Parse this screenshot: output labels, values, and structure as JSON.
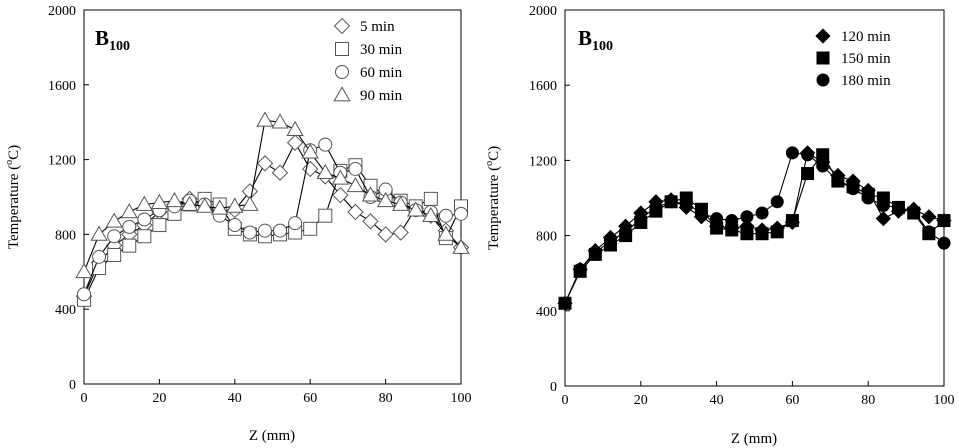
{
  "chart_data": [
    {
      "type": "line",
      "panel_label": "B",
      "panel_label_sub": "100",
      "xlabel": "Z (mm)",
      "ylabel_main": "Temperature (",
      "ylabel_sup": "o",
      "ylabel_end": "C)",
      "xlim": [
        0,
        100
      ],
      "ylim": [
        0,
        2000
      ],
      "xticks": [
        0,
        20,
        40,
        60,
        80,
        100
      ],
      "yticks": [
        0,
        400,
        800,
        1200,
        1600,
        2000
      ],
      "grid": false,
      "legend_position": "top-right",
      "marker_style": "hollow",
      "series": [
        {
          "name": "5 min",
          "marker": "diamond",
          "x": [
            0,
            4,
            8,
            12,
            16,
            20,
            24,
            28,
            32,
            36,
            40,
            44,
            48,
            52,
            56,
            60,
            64,
            68,
            72,
            76,
            80,
            84,
            88,
            92,
            96,
            100
          ],
          "y": [
            470,
            650,
            740,
            800,
            850,
            920,
            960,
            990,
            960,
            920,
            930,
            1030,
            1180,
            1130,
            1290,
            1150,
            1110,
            1010,
            920,
            870,
            800,
            810,
            940,
            900,
            820,
            730
          ]
        },
        {
          "name": "30 min",
          "marker": "square",
          "x": [
            0,
            4,
            8,
            12,
            16,
            20,
            24,
            28,
            32,
            36,
            40,
            44,
            48,
            52,
            56,
            60,
            64,
            68,
            72,
            76,
            80,
            84,
            88,
            92,
            96,
            100
          ],
          "y": [
            450,
            620,
            690,
            740,
            790,
            850,
            910,
            960,
            990,
            960,
            830,
            800,
            790,
            800,
            810,
            830,
            900,
            1140,
            1170,
            1060,
            1010,
            980,
            950,
            990,
            780,
            950
          ]
        },
        {
          "name": "60 min",
          "marker": "circle",
          "x": [
            0,
            4,
            8,
            12,
            16,
            20,
            24,
            28,
            32,
            36,
            40,
            44,
            48,
            52,
            56,
            60,
            64,
            68,
            72,
            76,
            80,
            84,
            88,
            92,
            96,
            100
          ],
          "y": [
            480,
            680,
            790,
            840,
            880,
            930,
            950,
            980,
            960,
            900,
            850,
            810,
            820,
            820,
            860,
            1250,
            1280,
            1130,
            1150,
            1000,
            1040,
            970,
            930,
            920,
            900,
            910
          ]
        },
        {
          "name": "90 min",
          "marker": "triangle",
          "x": [
            0,
            4,
            8,
            12,
            16,
            20,
            24,
            28,
            32,
            36,
            40,
            44,
            48,
            52,
            56,
            60,
            64,
            68,
            72,
            76,
            80,
            84,
            88,
            92,
            96,
            100
          ],
          "y": [
            600,
            800,
            870,
            920,
            960,
            970,
            980,
            960,
            950,
            940,
            950,
            960,
            1410,
            1400,
            1360,
            1240,
            1130,
            1100,
            1060,
            1010,
            980,
            960,
            930,
            900,
            800,
            730
          ]
        }
      ]
    },
    {
      "type": "line",
      "panel_label": "B",
      "panel_label_sub": "100",
      "xlabel": "Z (mm)",
      "ylabel_main": "Temperature (",
      "ylabel_sup": "o",
      "ylabel_end": "C)",
      "xlim": [
        0,
        100
      ],
      "ylim": [
        0,
        2000
      ],
      "xticks": [
        0,
        20,
        40,
        60,
        80,
        100
      ],
      "yticks": [
        0,
        400,
        800,
        1200,
        1600,
        2000
      ],
      "grid": false,
      "legend_position": "top-right",
      "marker_style": "filled",
      "series": [
        {
          "name": "120 min",
          "marker": "diamond",
          "x": [
            0,
            4,
            8,
            12,
            16,
            20,
            24,
            28,
            32,
            36,
            40,
            44,
            48,
            52,
            56,
            60,
            64,
            68,
            72,
            76,
            80,
            84,
            88,
            92,
            96,
            100
          ],
          "y": [
            440,
            620,
            720,
            790,
            850,
            920,
            980,
            990,
            950,
            900,
            850,
            840,
            850,
            830,
            840,
            870,
            1240,
            1190,
            1120,
            1090,
            1040,
            890,
            930,
            940,
            900,
            880
          ]
        },
        {
          "name": "150 min",
          "marker": "square",
          "x": [
            0,
            4,
            8,
            12,
            16,
            20,
            24,
            28,
            32,
            36,
            40,
            44,
            48,
            52,
            56,
            60,
            64,
            68,
            72,
            76,
            80,
            84,
            88,
            92,
            96,
            100
          ],
          "y": [
            440,
            610,
            700,
            750,
            800,
            870,
            930,
            980,
            1000,
            940,
            840,
            830,
            810,
            810,
            820,
            880,
            1130,
            1230,
            1090,
            1060,
            1020,
            1000,
            950,
            920,
            810,
            880
          ]
        },
        {
          "name": "180 min",
          "marker": "circle",
          "x": [
            0,
            4,
            8,
            12,
            16,
            20,
            24,
            28,
            32,
            36,
            40,
            44,
            48,
            52,
            56,
            60,
            64,
            68,
            72,
            76,
            80,
            84,
            88,
            92,
            96,
            100
          ],
          "y": [
            440,
            620,
            710,
            770,
            820,
            890,
            950,
            980,
            970,
            920,
            890,
            880,
            900,
            920,
            980,
            1240,
            1230,
            1170,
            1090,
            1050,
            1000,
            960,
            950,
            930,
            820,
            760
          ]
        }
      ]
    }
  ]
}
